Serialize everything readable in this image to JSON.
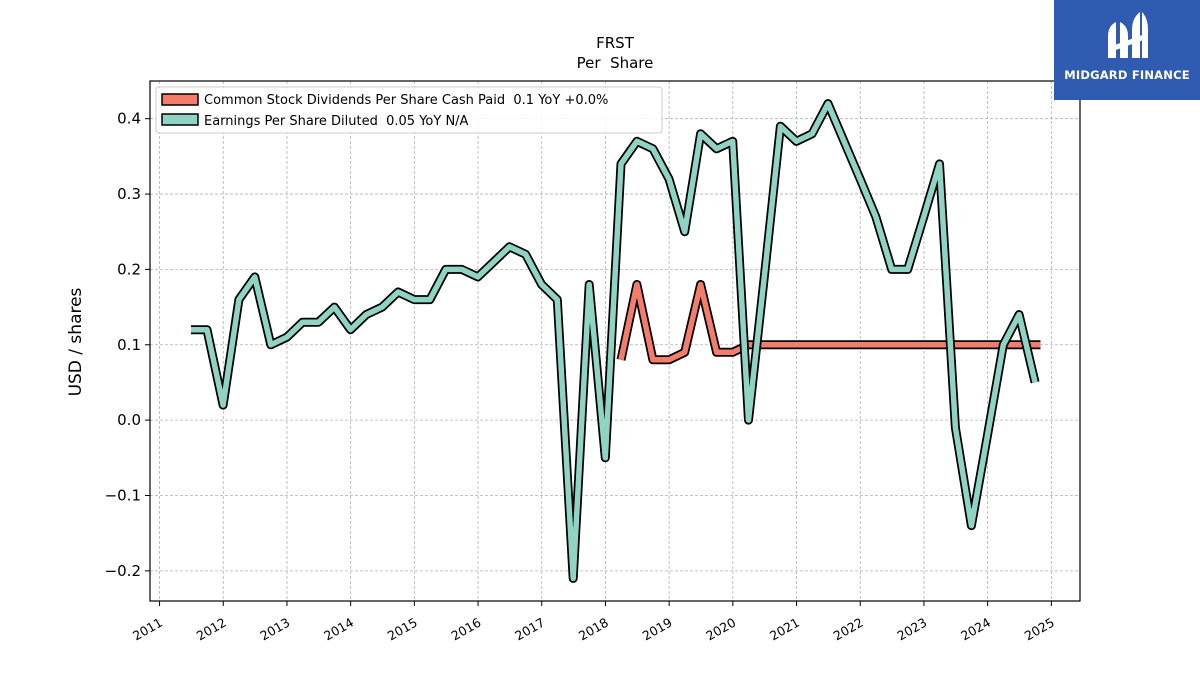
{
  "chart_data": {
    "type": "line",
    "title": "FRST",
    "subtitle": "Per  Share",
    "xlabel": "",
    "ylabel": "USD / shares",
    "xlim": [
      2010.85,
      2025.45
    ],
    "ylim": [
      -0.24,
      0.45
    ],
    "x_ticks": [
      "2011",
      "2012",
      "2013",
      "2014",
      "2015",
      "2016",
      "2017",
      "2018",
      "2019",
      "2020",
      "2021",
      "2022",
      "2023",
      "2024",
      "2025"
    ],
    "y_ticks": [
      "−0.2",
      "−0.1",
      "0.0",
      "0.1",
      "0.2",
      "0.3",
      "0.4"
    ],
    "y_tick_values": [
      -0.2,
      -0.1,
      0.0,
      0.1,
      0.2,
      0.3,
      0.4
    ],
    "grid": true,
    "legend_position": "top-left",
    "series": [
      {
        "name": "Common Stock Dividends Per Share Cash Paid  0.1 YoY +0.0%",
        "color": "#f47c6b",
        "points": [
          [
            "2018-03-31",
            0.08
          ],
          [
            "2018-06-30",
            0.18
          ],
          [
            "2018-09-30",
            0.08
          ],
          [
            "2018-12-31",
            0.08
          ],
          [
            "2019-03-31",
            0.09
          ],
          [
            "2019-06-30",
            0.18
          ],
          [
            "2019-09-30",
            0.09
          ],
          [
            "2019-12-31",
            0.09
          ],
          [
            "2020-03-31",
            0.1
          ],
          [
            "2020-06-30",
            0.1
          ],
          [
            "2020-09-30",
            0.1
          ],
          [
            "2020-12-31",
            0.1
          ],
          [
            "2021-03-31",
            0.1
          ],
          [
            "2021-06-30",
            0.1
          ],
          [
            "2021-09-30",
            0.1
          ],
          [
            "2021-12-31",
            0.1
          ],
          [
            "2022-03-31",
            0.1
          ],
          [
            "2022-06-30",
            0.1
          ],
          [
            "2022-09-30",
            0.1
          ],
          [
            "2022-12-31",
            0.1
          ],
          [
            "2023-03-31",
            0.1
          ],
          [
            "2023-06-30",
            0.1
          ],
          [
            "2023-09-30",
            0.1
          ],
          [
            "2023-12-31",
            0.1
          ],
          [
            "2024-03-31",
            0.1
          ],
          [
            "2024-06-30",
            0.1
          ],
          [
            "2024-09-30",
            0.1
          ],
          [
            "2024-10-31",
            0.1
          ]
        ]
      },
      {
        "name": "Earnings Per Share Diluted  0.05 YoY N/A",
        "color": "#8ed3c4",
        "points": [
          [
            "2011-06-30",
            0.12
          ],
          [
            "2011-09-30",
            0.12
          ],
          [
            "2011-12-31",
            0.02
          ],
          [
            "2012-03-31",
            0.16
          ],
          [
            "2012-06-30",
            0.19
          ],
          [
            "2012-09-30",
            0.1
          ],
          [
            "2012-12-31",
            0.11
          ],
          [
            "2013-03-31",
            0.13
          ],
          [
            "2013-06-30",
            0.13
          ],
          [
            "2013-09-30",
            0.15
          ],
          [
            "2013-12-31",
            0.12
          ],
          [
            "2014-03-31",
            0.14
          ],
          [
            "2014-06-30",
            0.15
          ],
          [
            "2014-09-30",
            0.17
          ],
          [
            "2014-12-31",
            0.16
          ],
          [
            "2015-03-31",
            0.16
          ],
          [
            "2015-06-30",
            0.2
          ],
          [
            "2015-09-30",
            0.2
          ],
          [
            "2015-12-31",
            0.19
          ],
          [
            "2016-03-31",
            0.21
          ],
          [
            "2016-06-30",
            0.23
          ],
          [
            "2016-09-30",
            0.22
          ],
          [
            "2016-12-31",
            0.18
          ],
          [
            "2017-03-31",
            0.16
          ],
          [
            "2017-06-30",
            -0.21
          ],
          [
            "2017-09-30",
            0.18
          ],
          [
            "2017-12-31",
            -0.05
          ],
          [
            "2018-03-31",
            0.34
          ],
          [
            "2018-06-30",
            0.37
          ],
          [
            "2018-09-30",
            0.36
          ],
          [
            "2018-12-31",
            0.32
          ],
          [
            "2019-03-31",
            0.25
          ],
          [
            "2019-06-30",
            0.38
          ],
          [
            "2019-09-30",
            0.36
          ],
          [
            "2019-12-31",
            0.37
          ],
          [
            "2020-03-31",
            0.0
          ],
          [
            "2020-06-30",
            0.19
          ],
          [
            "2020-09-30",
            0.39
          ],
          [
            "2020-12-31",
            0.37
          ],
          [
            "2021-03-31",
            0.38
          ],
          [
            "2021-06-30",
            0.42
          ],
          [
            "2021-09-30",
            0.37
          ],
          [
            "2021-12-31",
            0.32
          ],
          [
            "2022-03-31",
            0.27
          ],
          [
            "2022-06-30",
            0.2
          ],
          [
            "2022-09-30",
            0.2
          ],
          [
            "2022-12-31",
            0.27
          ],
          [
            "2023-03-31",
            0.34
          ],
          [
            "2023-06-30",
            -0.01
          ],
          [
            "2023-09-30",
            -0.14
          ],
          [
            "2023-12-31",
            -0.02
          ],
          [
            "2024-03-31",
            0.1
          ],
          [
            "2024-06-30",
            0.14
          ],
          [
            "2024-09-30",
            0.05
          ]
        ]
      }
    ]
  },
  "logo": {
    "text": "MIDGARD FINANCE",
    "color": "#2f5bb0"
  }
}
